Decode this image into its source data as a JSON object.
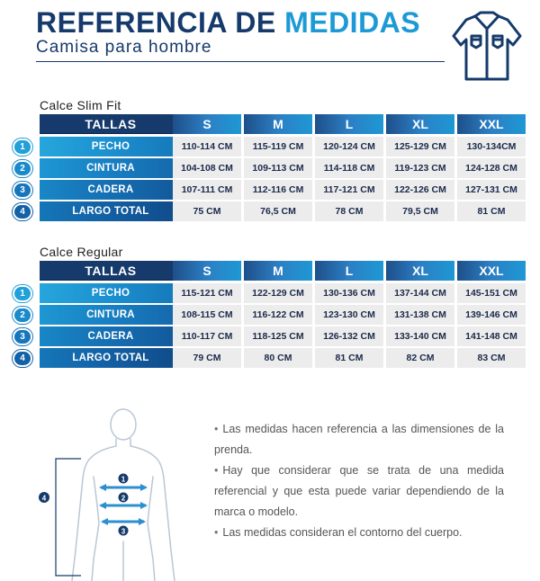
{
  "header": {
    "title_part1": "REFERENCIA DE",
    "title_part2": "MEDIDAS",
    "subtitle": "Camisa para hombre",
    "icon": "shirt-icon"
  },
  "colors": {
    "navy": "#153a6b",
    "accent": "#1d9ad6",
    "cell_bg": "#ececec",
    "size_header_gradient": [
      "#1e4f8a",
      "#2c7fc4",
      "#1e98d4"
    ]
  },
  "tables": [
    {
      "label": "Calce Slim Fit",
      "header": {
        "tallas": "TALLAS",
        "sizes": [
          "S",
          "M",
          "L",
          "XL",
          "XXL"
        ]
      },
      "rows": [
        {
          "num": "1",
          "label": "PECHO",
          "values": [
            "110-114 CM",
            "115-119 CM",
            "120-124 CM",
            "125-129 CM",
            "130-134CM"
          ]
        },
        {
          "num": "2",
          "label": "CINTURA",
          "values": [
            "104-108 CM",
            "109-113 CM",
            "114-118 CM",
            "119-123 CM",
            "124-128 CM"
          ]
        },
        {
          "num": "3",
          "label": "CADERA",
          "values": [
            "107-111 CM",
            "112-116 CM",
            "117-121 CM",
            "122-126 CM",
            "127-131 CM"
          ]
        },
        {
          "num": "4",
          "label": "LARGO TOTAL",
          "values": [
            "75 CM",
            "76,5 CM",
            "78 CM",
            "79,5 CM",
            "81 CM"
          ]
        }
      ]
    },
    {
      "label": "Calce Regular",
      "header": {
        "tallas": "TALLAS",
        "sizes": [
          "S",
          "M",
          "L",
          "XL",
          "XXL"
        ]
      },
      "rows": [
        {
          "num": "1",
          "label": "PECHO",
          "values": [
            "115-121 CM",
            "122-129 CM",
            "130-136 CM",
            "137-144 CM",
            "145-151 CM"
          ]
        },
        {
          "num": "2",
          "label": "CINTURA",
          "values": [
            "108-115 CM",
            "116-122 CM",
            "123-130 CM",
            "131-138 CM",
            "139-146 CM"
          ]
        },
        {
          "num": "3",
          "label": "CADERA",
          "values": [
            "110-117 CM",
            "118-125 CM",
            "126-132 CM",
            "133-140 CM",
            "141-148 CM"
          ]
        },
        {
          "num": "4",
          "label": "LARGO TOTAL",
          "values": [
            "79 CM",
            "80 CM",
            "81 CM",
            "82 CM",
            "83 CM"
          ]
        }
      ]
    }
  ],
  "figure": {
    "markers": [
      "1",
      "2",
      "3",
      "4"
    ],
    "icon": "body-measurement-figure"
  },
  "notes": [
    "Las medidas hacen referencia a las dimensiones de la prenda.",
    "Hay que considerar que se trata de una medida referencial y que esta puede variar dependiendo de la marca o modelo.",
    "Las medidas consideran el contorno del cuerpo."
  ]
}
